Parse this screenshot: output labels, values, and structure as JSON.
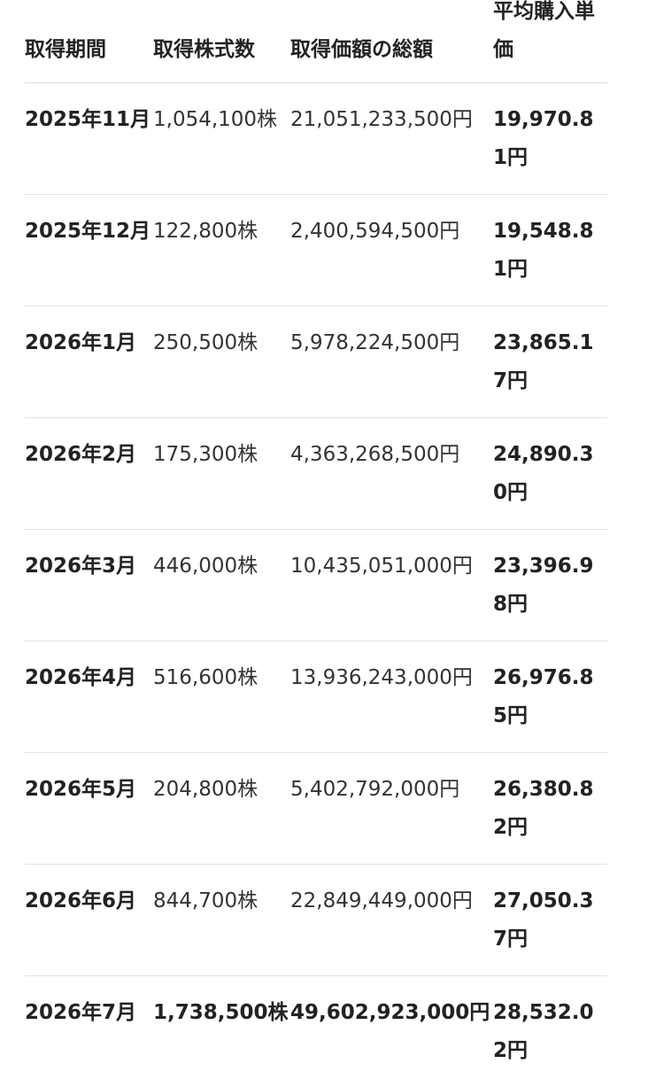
{
  "table": {
    "headers": [
      "取得期間",
      "取得株式数",
      "取得価額の総額",
      "平均購入単価"
    ],
    "rows": [
      {
        "period": "2025年11月",
        "shares": "1,054,100株",
        "total": "21,051,233,500円",
        "avg": "19,970.81円",
        "emphasis": false
      },
      {
        "period": "2025年12月",
        "shares": "122,800株",
        "total": "2,400,594,500円",
        "avg": "19,548.81円",
        "emphasis": false
      },
      {
        "period": "2026年1月",
        "shares": "250,500株",
        "total": "5,978,224,500円",
        "avg": "23,865.17円",
        "emphasis": false
      },
      {
        "period": "2026年2月",
        "shares": "175,300株",
        "total": "4,363,268,500円",
        "avg": "24,890.30円",
        "emphasis": false
      },
      {
        "period": "2026年3月",
        "shares": "446,000株",
        "total": "10,435,051,000円",
        "avg": "23,396.98円",
        "emphasis": false
      },
      {
        "period": "2026年4月",
        "shares": "516,600株",
        "total": "13,936,243,000円",
        "avg": "26,976.85円",
        "emphasis": false
      },
      {
        "period": "2026年5月",
        "shares": "204,800株",
        "total": "5,402,792,000円",
        "avg": "26,380.82円",
        "emphasis": false
      },
      {
        "period": "2026年6月",
        "shares": "844,700株",
        "total": "22,849,449,000円",
        "avg": "27,050.37円",
        "emphasis": false
      },
      {
        "period": "2026年7月",
        "shares": "1,738,500株",
        "total": "49,602,923,000円",
        "avg": "28,532.02円",
        "emphasis": true
      }
    ]
  }
}
